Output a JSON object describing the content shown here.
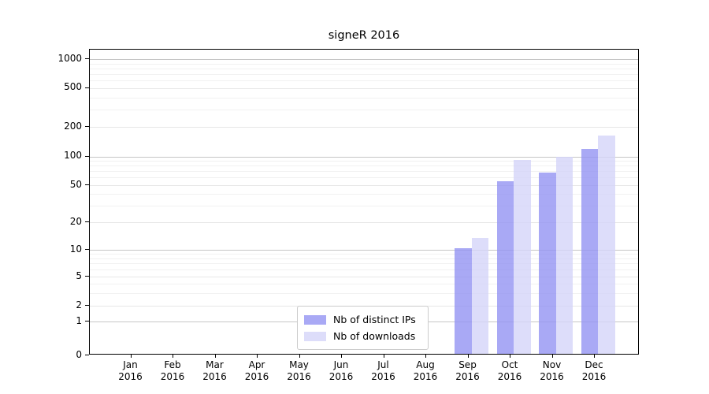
{
  "title": "signeR 2016",
  "chart_data": {
    "type": "bar",
    "title": "signeR 2016",
    "months": [
      "Jan",
      "Feb",
      "Mar",
      "Apr",
      "May",
      "Jun",
      "Jul",
      "Aug",
      "Sep",
      "Oct",
      "Nov",
      "Dec"
    ],
    "year": "2016",
    "y_ticks": [
      0,
      1,
      2,
      5,
      10,
      20,
      50,
      100,
      200,
      500,
      1000
    ],
    "ylim": [
      0,
      1260
    ],
    "y_scale": "log-like",
    "grid": true,
    "legend": {
      "position": "bottom-center-left",
      "entries": [
        "Nb of distinct IPs",
        "Nb of downloads"
      ]
    },
    "series": [
      {
        "name": "Nb of distinct IPs",
        "color": "#9494f2",
        "alpha": 0.8,
        "values": [
          0,
          0,
          0,
          0,
          0,
          0,
          0,
          0,
          10,
          53,
          65,
          115
        ]
      },
      {
        "name": "Nb of downloads",
        "color": "#d5d5f9",
        "alpha": 0.8,
        "values": [
          0,
          0,
          0,
          0,
          0,
          0,
          0,
          0,
          13,
          88,
          95,
          157
        ]
      }
    ]
  }
}
